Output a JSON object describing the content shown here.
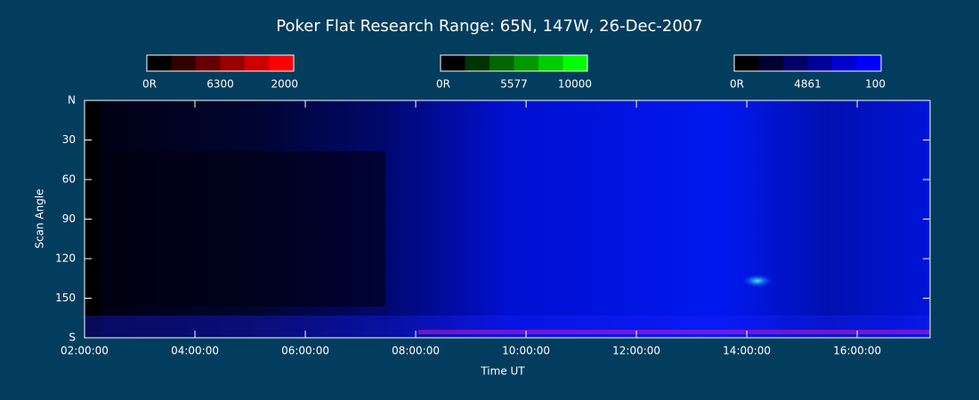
{
  "chart_data": {
    "type": "keogram",
    "title": "Poker Flat Research Range: 65N, 147W, 26-Dec-2007",
    "x_label": "Time UT",
    "y_label": "Scan Angle",
    "xlim": [
      2,
      17.32
    ],
    "xticks": [
      {
        "value": 2,
        "label": "02:00:00"
      },
      {
        "value": 4,
        "label": "04:00:00"
      },
      {
        "value": 6,
        "label": "06:00:00"
      },
      {
        "value": 8,
        "label": "08:00:00"
      },
      {
        "value": 10,
        "label": "10:00:00"
      },
      {
        "value": 12,
        "label": "12:00:00"
      },
      {
        "value": 14,
        "label": "14:00:00"
      },
      {
        "value": 16,
        "label": "16:00:00"
      }
    ],
    "ylim": [
      0,
      180
    ],
    "yticks": [
      {
        "value": 0,
        "label": "N"
      },
      30,
      60,
      90,
      120,
      150,
      {
        "value": 180,
        "label": "S"
      }
    ],
    "colorbars": [
      {
        "labels": [
          "0R",
          "6300",
          "2000"
        ],
        "colors": [
          "#000000",
          "#330000",
          "#660000",
          "#990000",
          "#cc0000",
          "#ff0000"
        ]
      },
      {
        "labels": [
          "0R",
          "5577",
          "10000"
        ],
        "colors": [
          "#000000",
          "#003300",
          "#006600",
          "#009900",
          "#00cc00",
          "#00ff00"
        ]
      },
      {
        "labels": [
          "0R",
          "4861",
          "100"
        ],
        "colors": [
          "#000000",
          "#000033",
          "#000066",
          "#000099",
          "#0000cc",
          "#0000ff"
        ]
      }
    ]
  }
}
